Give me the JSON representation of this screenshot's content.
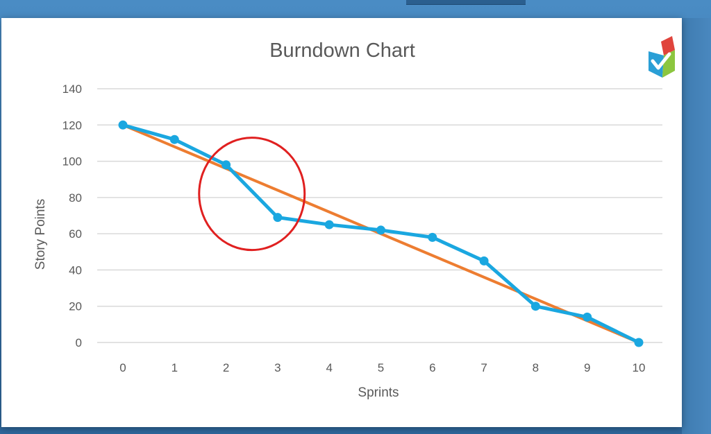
{
  "colors": {
    "slide_background": "#ffffff",
    "gridline": "#d9d9d9",
    "actual_line": "#1aa7e0",
    "ideal_line": "#ed7d31",
    "highlight_circle": "#e02020",
    "text": "#595959"
  },
  "icons": {
    "logo": "checkmark-shield-logo-icon"
  },
  "chart_data": {
    "type": "line",
    "title": "Burndown Chart",
    "xlabel": "Sprints",
    "ylabel": "Story Points",
    "x": [
      0,
      1,
      2,
      3,
      4,
      5,
      6,
      7,
      8,
      9,
      10
    ],
    "xlim": [
      0,
      10
    ],
    "ylim": [
      0,
      140
    ],
    "yticks": [
      0,
      20,
      40,
      60,
      80,
      100,
      120,
      140
    ],
    "grid": true,
    "legend": "none",
    "series": [
      {
        "values": [
          120,
          112,
          98,
          69,
          65,
          62,
          58,
          45,
          20,
          14,
          0
        ],
        "markers": true,
        "color": "#1aa7e0"
      },
      {
        "values": [
          120,
          108,
          96,
          84,
          72,
          60,
          48,
          36,
          24,
          12,
          0
        ],
        "markers": false,
        "color": "#ed7d31"
      }
    ],
    "annotations": [
      {
        "shape": "circle",
        "color": "#e02020",
        "center_x": 2.5,
        "center_y": 82
      }
    ]
  }
}
